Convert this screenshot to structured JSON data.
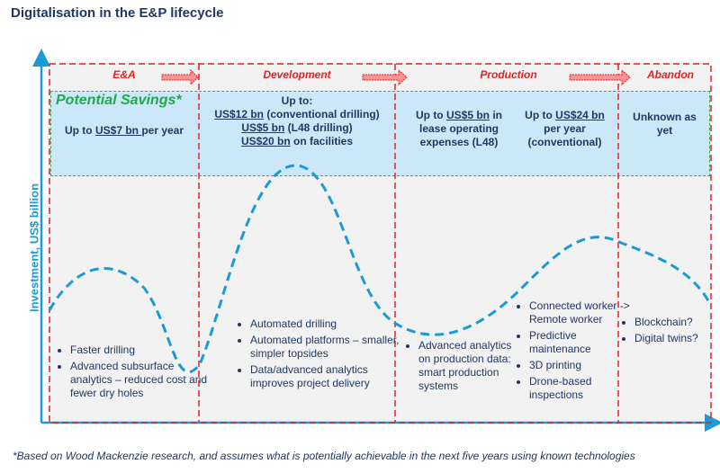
{
  "title": "Digitalisation in the E&P lifecycle",
  "y_axis_label": "Investment, US$ billion",
  "phases": [
    "E&A",
    "Development",
    "Production",
    "Abandon"
  ],
  "potential_savings_label": "Potential Savings*",
  "savings": {
    "ea": {
      "pre": "Up to ",
      "amt": "US$7 bn ",
      "post": "per year"
    },
    "dev": {
      "head": "Up to:",
      "l1a": "US$12 bn",
      "l1b": " (conventional drilling)",
      "l2a": "US$5 bn",
      "l2b": " (L48 drilling)",
      "l3a": "US$20 bn",
      "l3b": " on facilities"
    },
    "prod1": {
      "pre": "Up to ",
      "amt": "US$5 bn",
      "post": " in",
      "l2": "lease operating",
      "l3": "expenses (L48)"
    },
    "prod2": {
      "pre": "Up to ",
      "amt": "US$24 bn",
      "l2": "per year",
      "l3": "(conventional)"
    },
    "abandon": {
      "l1": "Unknown as",
      "l2": "yet"
    }
  },
  "bullets": {
    "ea": [
      "Faster drilling",
      "Advanced subsurface analytics – reduced cost and fewer dry holes"
    ],
    "dev": [
      "Automated drilling",
      "Automated platforms – smaller, simpler topsides",
      "Data/advanced analytics improves project delivery"
    ],
    "prod1": [
      "Advanced analytics on production data: smart production systems"
    ],
    "prod2": [
      "Connected worker -> Remote worker",
      "Predictive maintenance",
      "3D printing",
      "Drone-based inspections"
    ],
    "abandon": [
      "Blockchain?",
      "Digital twins?"
    ]
  },
  "footnote": "*Based on Wood Mackenzie research, and assumes what is potentially achievable in the next five years using known technologies",
  "colors": {
    "title": "#1f3864",
    "phase": "#e32222",
    "curve": "#1a9ad6",
    "savings_green": "#1faa4a",
    "savings_bg": "#cce8f8"
  }
}
